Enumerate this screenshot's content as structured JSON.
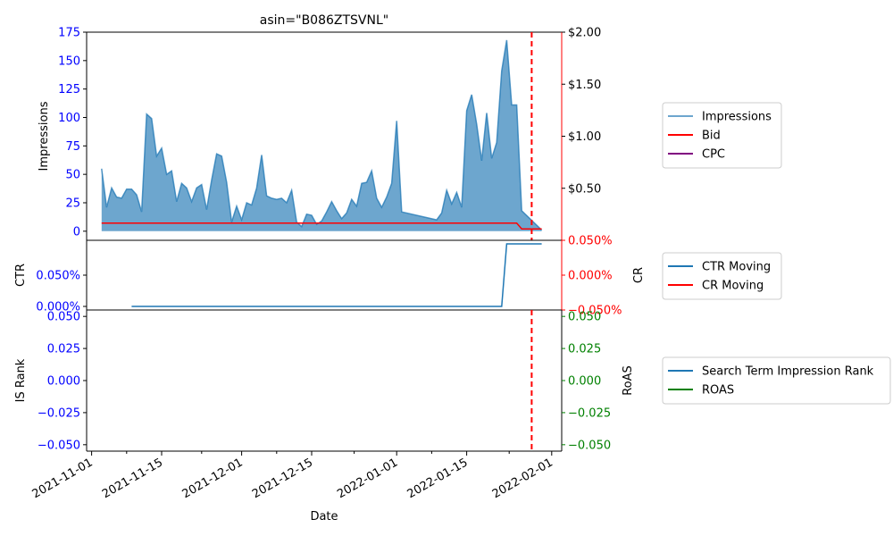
{
  "chart_data": {
    "title": "asin=\"B086ZTSVNL\"",
    "xlabel": "Date",
    "x_ticks": [
      "2021-11-01",
      "2021-11-15",
      "2021-12-01",
      "2021-12-15",
      "2022-01-01",
      "2022-01-15",
      "2022-02-01"
    ],
    "xlim": [
      "2021-10-31",
      "2022-02-03"
    ],
    "marker_date": "2022-01-28",
    "colors": {
      "impressions": "#1f77b4",
      "bid": "#ff0000",
      "cpc": "#800080",
      "ctr": "#1f77b4",
      "cr": "#ff0000",
      "is_rank": "#1f77b4",
      "roas": "#008000",
      "left_axis": "#0000ff",
      "right_axis_top": "#ff0000",
      "right_axis_bottom": "#008000"
    },
    "panels": [
      {
        "type": "area",
        "ylabel": "Impressions",
        "ylim": [
          -8,
          175
        ],
        "y_ticks": [
          "0",
          "25",
          "50",
          "75",
          "100",
          "125",
          "150",
          "175"
        ],
        "y2lim": [
          0,
          2.0
        ],
        "y2_ticks": [
          "$0.50",
          "$1.00",
          "$1.50",
          "$2.00"
        ],
        "y2_tick_values": [
          0.5,
          1.0,
          1.5,
          2.0
        ],
        "legend": [
          "Impressions",
          "Bid",
          "CPC"
        ],
        "legend_position": "right",
        "series": [
          {
            "name": "Impressions",
            "points": [
              [
                "2021-11-03",
                55
              ],
              [
                "2021-11-04",
                21
              ],
              [
                "2021-11-05",
                38
              ],
              [
                "2021-11-06",
                30
              ],
              [
                "2021-11-07",
                29
              ],
              [
                "2021-11-08",
                37
              ],
              [
                "2021-11-09",
                37
              ],
              [
                "2021-11-10",
                32
              ],
              [
                "2021-11-11",
                17
              ],
              [
                "2021-11-12",
                103
              ],
              [
                "2021-11-13",
                99
              ],
              [
                "2021-11-14",
                66
              ],
              [
                "2021-11-15",
                73
              ],
              [
                "2021-11-16",
                50
              ],
              [
                "2021-11-17",
                53
              ],
              [
                "2021-11-18",
                26
              ],
              [
                "2021-11-19",
                42
              ],
              [
                "2021-11-20",
                38
              ],
              [
                "2021-11-21",
                26
              ],
              [
                "2021-11-22",
                38
              ],
              [
                "2021-11-23",
                41
              ],
              [
                "2021-11-24",
                19
              ],
              [
                "2021-11-25",
                45
              ],
              [
                "2021-11-26",
                68
              ],
              [
                "2021-11-27",
                66
              ],
              [
                "2021-11-28",
                43
              ],
              [
                "2021-11-29",
                8
              ],
              [
                "2021-11-30",
                22
              ],
              [
                "2021-12-01",
                10
              ],
              [
                "2021-12-02",
                25
              ],
              [
                "2021-12-03",
                23
              ],
              [
                "2021-12-04",
                38
              ],
              [
                "2021-12-05",
                67
              ],
              [
                "2021-12-06",
                31
              ],
              [
                "2021-12-07",
                29
              ],
              [
                "2021-12-08",
                28
              ],
              [
                "2021-12-09",
                29
              ],
              [
                "2021-12-10",
                25
              ],
              [
                "2021-12-11",
                36
              ],
              [
                "2021-12-12",
                8
              ],
              [
                "2021-12-13",
                4
              ],
              [
                "2021-12-14",
                15
              ],
              [
                "2021-12-15",
                14
              ],
              [
                "2021-12-16",
                6
              ],
              [
                "2021-12-17",
                9
              ],
              [
                "2021-12-18",
                17
              ],
              [
                "2021-12-19",
                26
              ],
              [
                "2021-12-20",
                18
              ],
              [
                "2021-12-21",
                11
              ],
              [
                "2021-12-22",
                16
              ],
              [
                "2021-12-23",
                28
              ],
              [
                "2021-12-24",
                22
              ],
              [
                "2021-12-25",
                42
              ],
              [
                "2021-12-26",
                43
              ],
              [
                "2021-12-27",
                53
              ],
              [
                "2021-12-28",
                29
              ],
              [
                "2021-12-29",
                21
              ],
              [
                "2021-12-30",
                30
              ],
              [
                "2021-12-31",
                42
              ],
              [
                "2022-01-01",
                97
              ],
              [
                "2022-01-02",
                17
              ],
              [
                "2022-01-09",
                10
              ],
              [
                "2022-01-10",
                16
              ],
              [
                "2022-01-11",
                36
              ],
              [
                "2022-01-12",
                24
              ],
              [
                "2022-01-13",
                34
              ],
              [
                "2022-01-14",
                21
              ],
              [
                "2022-01-15",
                106
              ],
              [
                "2022-01-16",
                120
              ],
              [
                "2022-01-17",
                94
              ],
              [
                "2022-01-18",
                62
              ],
              [
                "2022-01-19",
                104
              ],
              [
                "2022-01-20",
                64
              ],
              [
                "2022-01-21",
                78
              ],
              [
                "2022-01-22",
                141
              ],
              [
                "2022-01-23",
                168
              ],
              [
                "2022-01-24",
                111
              ],
              [
                "2022-01-25",
                111
              ],
              [
                "2022-01-26",
                18
              ],
              [
                "2022-01-30",
                1
              ]
            ]
          },
          {
            "name": "Bid",
            "points": [
              [
                "2021-11-03",
                0.165
              ],
              [
                "2022-01-25",
                0.165
              ],
              [
                "2022-01-26",
                0.11
              ],
              [
                "2022-01-30",
                0.11
              ]
            ]
          },
          {
            "name": "CPC",
            "points": []
          }
        ]
      },
      {
        "type": "line",
        "ylabel": "CTR",
        "ylim": [
          0,
          0.1
        ],
        "y_ticks": [
          "0.000%",
          "0.050%"
        ],
        "y_tick_values": [
          0,
          0.05
        ],
        "y2label": "CR",
        "y2lim": [
          -0.05,
          0.05
        ],
        "y2_ticks": [
          "−0.050%",
          "0.000%",
          "0.050%"
        ],
        "y2_tick_values": [
          -0.05,
          0.0,
          0.05
        ],
        "legend": [
          "CTR Moving",
          "CR Moving"
        ],
        "legend_position": "right",
        "series": [
          {
            "name": "CTR Moving",
            "points": [
              [
                "2021-11-09",
                0.0
              ],
              [
                "2022-01-22",
                0.0
              ],
              [
                "2022-01-23",
                0.1
              ],
              [
                "2022-01-30",
                0.1
              ]
            ]
          },
          {
            "name": "CR Moving",
            "points": []
          }
        ]
      },
      {
        "type": "line",
        "ylabel": "IS Rank",
        "ylim": [
          -0.055,
          0.055
        ],
        "y_ticks": [
          "−0.050",
          "−0.025",
          "0.000",
          "0.025",
          "0.050"
        ],
        "y_tick_values": [
          -0.05,
          -0.025,
          0.0,
          0.025,
          0.05
        ],
        "y2label": "RoAS",
        "y2lim": [
          -0.055,
          0.055
        ],
        "y2_ticks": [
          "−0.050",
          "−0.025",
          "0.000",
          "0.025",
          "0.050"
        ],
        "y2_tick_values": [
          -0.05,
          -0.025,
          0.0,
          0.025,
          0.05
        ],
        "legend": [
          "Search Term Impression Rank",
          "ROAS"
        ],
        "legend_position": "right",
        "series": [
          {
            "name": "Search Term Impression Rank",
            "points": []
          },
          {
            "name": "ROAS",
            "points": []
          }
        ]
      }
    ]
  }
}
